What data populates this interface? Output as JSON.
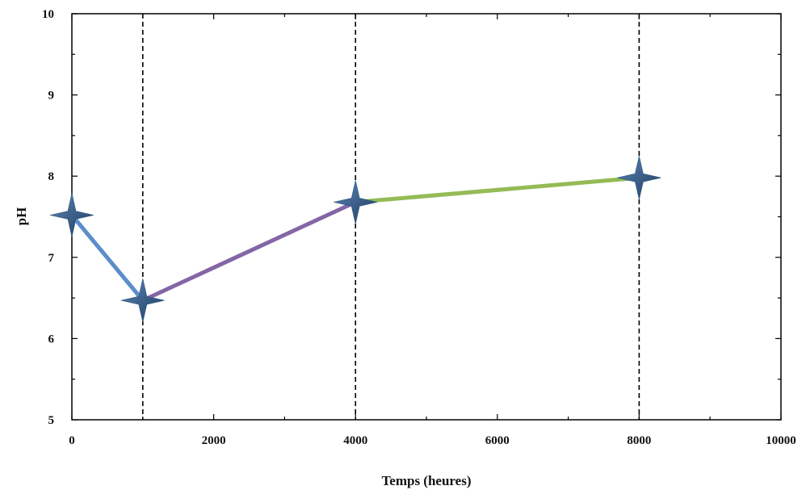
{
  "chart_data": {
    "type": "line",
    "xlabel": "Temps (heures)",
    "ylabel": "pH",
    "xlim": [
      0,
      10000
    ],
    "ylim": [
      5,
      10
    ],
    "x_ticks": [
      0,
      2000,
      4000,
      6000,
      8000,
      10000
    ],
    "x_tick_labels": [
      "0",
      "2000",
      "4000",
      "6000",
      "8000",
      "10000"
    ],
    "y_ticks": [
      5,
      6,
      7,
      8,
      9,
      10
    ],
    "y_tick_labels": [
      "5",
      "6",
      "7",
      "8",
      "9",
      "10"
    ],
    "vertical_reference_lines": [
      1000,
      4000,
      8000
    ],
    "grid": false,
    "points": [
      {
        "x": 0,
        "y": 7.52
      },
      {
        "x": 1000,
        "y": 6.47
      },
      {
        "x": 4000,
        "y": 7.68
      },
      {
        "x": 8000,
        "y": 7.98
      }
    ],
    "segments": [
      {
        "from": 0,
        "to": 1,
        "color": "#5b8dc9"
      },
      {
        "from": 1,
        "to": 2,
        "color": "#8466a6"
      },
      {
        "from": 2,
        "to": 3,
        "color": "#94bb55"
      }
    ],
    "marker_color": "#2f5580",
    "axis_color": "#000000"
  }
}
